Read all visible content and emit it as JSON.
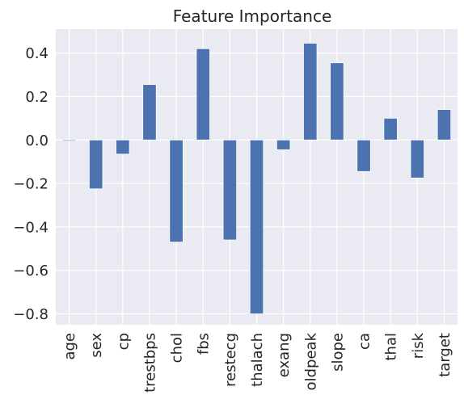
{
  "chart_data": {
    "type": "bar",
    "title": "Feature Importance",
    "xlabel": "",
    "ylabel": "",
    "categories": [
      "age",
      "sex",
      "cp",
      "trestbps",
      "chol",
      "fbs",
      "restecg",
      "thalach",
      "exang",
      "oldpeak",
      "slope",
      "ca",
      "thal",
      "risk",
      "target"
    ],
    "values": [
      -0.005,
      -0.225,
      -0.065,
      0.255,
      -0.47,
      0.42,
      -0.46,
      -0.8,
      -0.045,
      0.445,
      0.355,
      -0.145,
      0.1,
      -0.175,
      0.14
    ],
    "ylim": [
      -0.85,
      0.51
    ],
    "yticks": [
      -0.8,
      -0.6,
      -0.4,
      -0.2,
      0.0,
      0.2,
      0.4
    ],
    "ytick_labels": [
      "−0.8",
      "−0.6",
      "−0.4",
      "−0.2",
      "0.0",
      "0.2",
      "0.4"
    ],
    "grid": true,
    "colors": {
      "bar": "#4c72b0",
      "bar_edge": "#ffffff",
      "background": "#eaeaf2",
      "grid": "#ffffff",
      "text": "#262626"
    }
  }
}
